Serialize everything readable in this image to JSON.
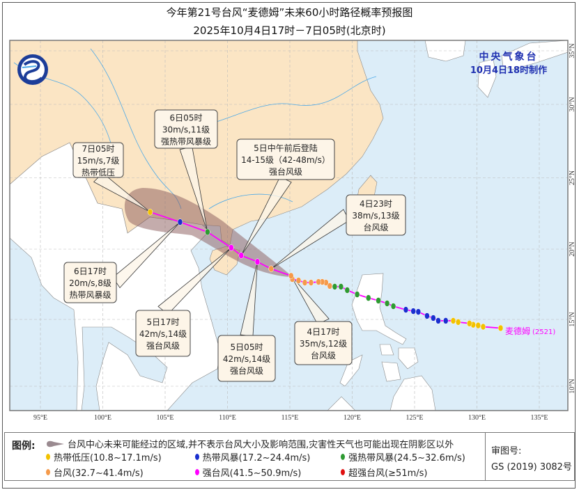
{
  "title": {
    "line1": "今年第21号台风“麦德姆”未来60小时路径概率预报图",
    "line2": "2025年10月4日17时－7日05时(北京时)"
  },
  "agency": {
    "name": "中央气象台",
    "issued": "10月4日18时制作",
    "color": "#1e2fb0"
  },
  "typhoon_label": {
    "name": "麦德姆",
    "code": "(2521)",
    "color": "#ff00ff"
  },
  "axes": {
    "lon_ticks": [
      "95°E",
      "100°E",
      "105°E",
      "110°E",
      "115°E",
      "120°E",
      "125°E",
      "130°E",
      "135°E"
    ],
    "lon_values": [
      95,
      100,
      105,
      110,
      115,
      120,
      125,
      130,
      135
    ],
    "lat_ticks": [
      "10°N",
      "15°N",
      "20°N",
      "25°N",
      "30°N",
      "35°N"
    ],
    "lat_values": [
      10,
      15,
      20,
      25,
      30,
      35
    ]
  },
  "colors": {
    "tropical_depression": "#f2c200",
    "tropical_storm": "#1a2fcf",
    "severe_tropical_storm": "#2e9a32",
    "typhoon": "#f59a4a",
    "severe_typhoon": "#ff00ff",
    "super_typhoon": "#e01010",
    "track_line": "#ff00ff",
    "land_china": "#fbe5c4",
    "land_other": "#ffffff",
    "sea": "#dcedf8",
    "cone": "#8a5a5a"
  },
  "track": {
    "past": [
      {
        "lon": 131.9,
        "lat": 14.35,
        "cat": "tropical_depression"
      },
      {
        "lon": 130.5,
        "lat": 14.45,
        "cat": "tropical_depression"
      },
      {
        "lon": 130.1,
        "lat": 14.55,
        "cat": "tropical_depression"
      },
      {
        "lon": 129.7,
        "lat": 14.6,
        "cat": "tropical_depression"
      },
      {
        "lon": 129.4,
        "lat": 14.7,
        "cat": "tropical_depression"
      },
      {
        "lon": 128.5,
        "lat": 14.8,
        "cat": "tropical_depression"
      },
      {
        "lon": 128.1,
        "lat": 14.9,
        "cat": "tropical_depression"
      },
      {
        "lon": 127.5,
        "lat": 14.9,
        "cat": "tropical_storm"
      },
      {
        "lon": 126.9,
        "lat": 14.9,
        "cat": "tropical_storm"
      },
      {
        "lon": 126.5,
        "lat": 15.1,
        "cat": "tropical_storm"
      },
      {
        "lon": 126.0,
        "lat": 15.25,
        "cat": "tropical_storm"
      },
      {
        "lon": 125.3,
        "lat": 15.54,
        "cat": "tropical_storm"
      },
      {
        "lon": 124.9,
        "lat": 15.59,
        "cat": "tropical_storm"
      },
      {
        "lon": 124.3,
        "lat": 15.69,
        "cat": "tropical_storm"
      },
      {
        "lon": 123.3,
        "lat": 15.94,
        "cat": "severe_tropical_storm"
      },
      {
        "lon": 122.8,
        "lat": 16.14,
        "cat": "severe_tropical_storm"
      },
      {
        "lon": 122.1,
        "lat": 16.34,
        "cat": "severe_tropical_storm"
      },
      {
        "lon": 121.3,
        "lat": 16.53,
        "cat": "severe_tropical_storm"
      },
      {
        "lon": 120.4,
        "lat": 16.78,
        "cat": "severe_tropical_storm"
      },
      {
        "lon": 119.6,
        "lat": 17.08,
        "cat": "severe_tropical_storm"
      },
      {
        "lon": 119.1,
        "lat": 17.33,
        "cat": "severe_tropical_storm"
      },
      {
        "lon": 118.6,
        "lat": 17.33,
        "cat": "severe_tropical_storm"
      },
      {
        "lon": 118.2,
        "lat": 17.38,
        "cat": "typhoon"
      },
      {
        "lon": 117.9,
        "lat": 17.62,
        "cat": "typhoon"
      },
      {
        "lon": 117.6,
        "lat": 17.67,
        "cat": "typhoon"
      },
      {
        "lon": 117.3,
        "lat": 17.67,
        "cat": "typhoon"
      },
      {
        "lon": 116.7,
        "lat": 17.62,
        "cat": "typhoon"
      },
      {
        "lon": 116.2,
        "lat": 17.62,
        "cat": "typhoon"
      },
      {
        "lon": 115.7,
        "lat": 17.77,
        "cat": "typhoon"
      },
      {
        "lon": 115.2,
        "lat": 17.87,
        "cat": "typhoon"
      }
    ],
    "forecast": [
      {
        "lon": 115.1,
        "lat": 18.1,
        "cat": "typhoon",
        "time": "4日17时",
        "wind": "35m/s,12级",
        "level": "台风级"
      },
      {
        "lon": 113.5,
        "lat": 18.6,
        "cat": "typhoon",
        "time": "4日23时",
        "wind": "38m/s,13级",
        "level": "台风级"
      },
      {
        "lon": 112.4,
        "lat": 19.1,
        "cat": "severe_typhoon",
        "time": "5日05时",
        "wind": "42m/s,14级",
        "level": "强台风级"
      },
      {
        "lon": 111.1,
        "lat": 19.55,
        "cat": "severe_typhoon",
        "time": "5日中午前后登陆",
        "wind": "14-15级（42-48m/s）",
        "level": "强台风级"
      },
      {
        "lon": 110.3,
        "lat": 20.1,
        "cat": "severe_typhoon",
        "time": "5日17时",
        "wind": "42m/s,14级",
        "level": "强台风级"
      },
      {
        "lon": 108.4,
        "lat": 21.2,
        "cat": "severe_tropical_storm",
        "time": "6日05时",
        "wind": "30m/s,11级",
        "level": "强热带风暴级"
      },
      {
        "lon": 106.2,
        "lat": 21.9,
        "cat": "tropical_storm",
        "time": "6日17时",
        "wind": "20m/s,8级",
        "level": "热带风暴级"
      },
      {
        "lon": 103.8,
        "lat": 22.6,
        "cat": "tropical_depression",
        "time": "7日05时",
        "wind": "15m/s,7级",
        "level": "热带低压"
      }
    ]
  },
  "legend": {
    "header": "图例:",
    "cone_text": "台风中心未来可能经过的区域,并不表示台风大小及影响范围,灾害性天气也可能出现在阴影区以外",
    "items": [
      {
        "label": "热带低压(10.8~17.1m/s)",
        "cat": "tropical_depression"
      },
      {
        "label": "热带风暴(17.2~24.4m/s)",
        "cat": "tropical_storm"
      },
      {
        "label": "强热带风暴(24.5~32.6m/s)",
        "cat": "severe_tropical_storm"
      },
      {
        "label": "台风(32.7~41.4m/s)",
        "cat": "typhoon"
      },
      {
        "label": "强台风(41.5~50.9m/s)",
        "cat": "severe_typhoon"
      },
      {
        "label": "超强台风(≥51m/s)",
        "cat": "super_typhoon"
      }
    ],
    "review_label": "审图号:",
    "review_number": "GS (2019) 3082号"
  }
}
